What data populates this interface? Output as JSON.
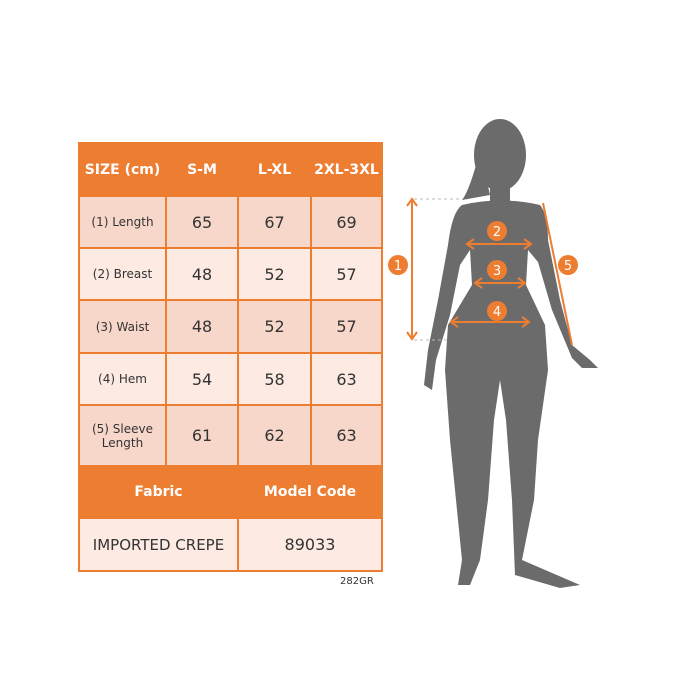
{
  "header": {
    "size_label": "SIZE (cm)",
    "sizes": [
      "S-M",
      "L-XL",
      "2XL-3XL"
    ]
  },
  "rows": [
    {
      "label": "(1) Length",
      "values": [
        "65",
        "67",
        "69"
      ]
    },
    {
      "label": "(2) Breast",
      "values": [
        "48",
        "52",
        "57"
      ]
    },
    {
      "label": "(3) Waist",
      "values": [
        "48",
        "52",
        "57"
      ]
    },
    {
      "label": "(4) Hem",
      "values": [
        "54",
        "58",
        "63"
      ]
    },
    {
      "label": "(5) Sleeve Length",
      "values": [
        "61",
        "62",
        "63"
      ]
    }
  ],
  "fabric": {
    "label": "Fabric",
    "value": "IMPORTED CREPE"
  },
  "model": {
    "label": "Model Code",
    "value": "89033"
  },
  "product_code": "282GR",
  "markers": [
    "1",
    "2",
    "3",
    "4",
    "5"
  ],
  "colors": {
    "accent": "#ED7D31",
    "silhouette": "#6B6B6B"
  }
}
